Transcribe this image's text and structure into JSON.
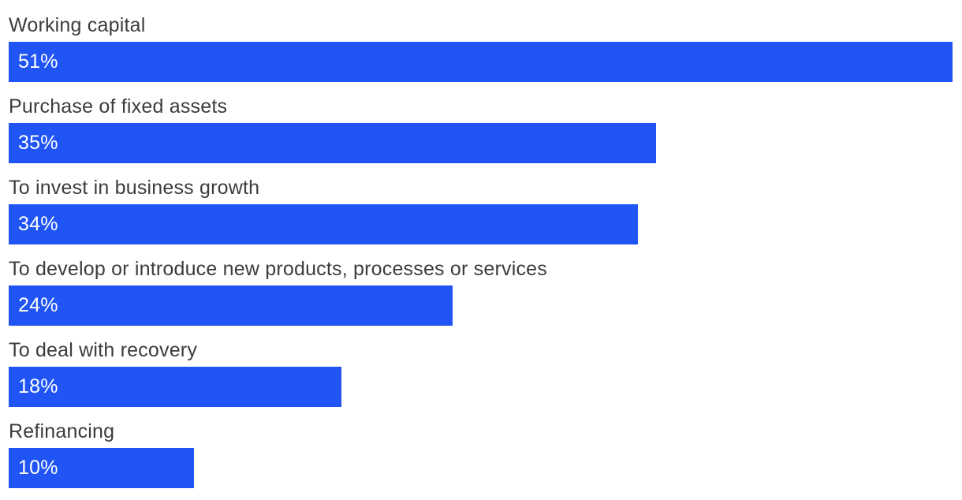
{
  "chart_data": {
    "type": "bar",
    "orientation": "horizontal",
    "title": "",
    "xlabel": "",
    "ylabel": "",
    "categories": [
      "Working capital",
      "Purchase of fixed assets",
      "To invest in business growth",
      "To develop or introduce new products, processes or services",
      "To deal with recovery",
      "Refinancing"
    ],
    "values": [
      51,
      35,
      34,
      24,
      18,
      10
    ],
    "value_labels": [
      "51%",
      "35%",
      "34%",
      "24%",
      "18%",
      "10%"
    ],
    "unit": "%",
    "xlim": [
      0,
      51
    ],
    "grid": false,
    "legend": false,
    "colors": {
      "bar": "#2054f5",
      "label_text": "#3c3c3c",
      "value_text": "#ffffff",
      "background": "#ffffff"
    }
  }
}
